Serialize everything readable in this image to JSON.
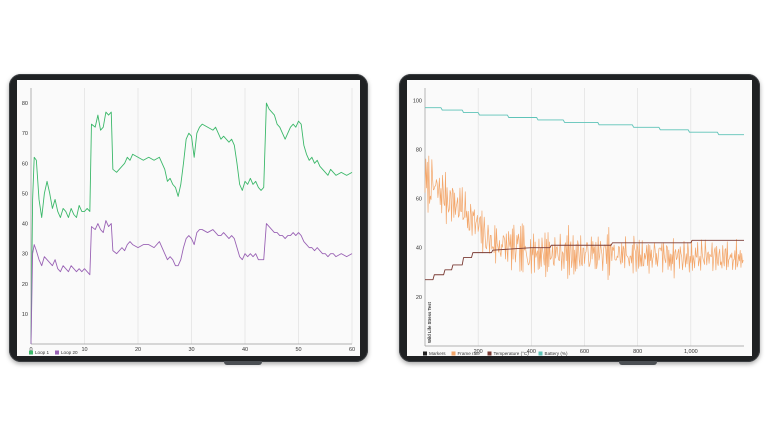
{
  "chart_data": [
    {
      "type": "line",
      "xlim": [
        0,
        60
      ],
      "ylim": [
        0,
        85
      ],
      "x_ticks": [
        "0",
        "10",
        "20",
        "30",
        "40",
        "50",
        "60"
      ],
      "y_ticks": [
        "10",
        "20",
        "30",
        "40",
        "50",
        "60",
        "70",
        "80"
      ],
      "grid": "vertical",
      "legend_position": "bottom-left",
      "series": [
        {
          "name": "Loop 1",
          "color": "#3cb86a",
          "points": [
            [
              0,
              0
            ],
            [
              0.3,
              48
            ],
            [
              0.6,
              62
            ],
            [
              1,
              61
            ],
            [
              1.5,
              48
            ],
            [
              2,
              42
            ],
            [
              2.5,
              50
            ],
            [
              3,
              54
            ],
            [
              3.5,
              50
            ],
            [
              4,
              45
            ],
            [
              4.5,
              48
            ],
            [
              5,
              44
            ],
            [
              5.5,
              42
            ],
            [
              6,
              45
            ],
            [
              6.5,
              44
            ],
            [
              7,
              42
            ],
            [
              7.5,
              45
            ],
            [
              8,
              43
            ],
            [
              8.5,
              42
            ],
            [
              9,
              46
            ],
            [
              9.5,
              44
            ],
            [
              10,
              44
            ],
            [
              10.5,
              45
            ],
            [
              11,
              44
            ],
            [
              11.3,
              73
            ],
            [
              12,
              72
            ],
            [
              12.5,
              76
            ],
            [
              13,
              71
            ],
            [
              13.5,
              72
            ],
            [
              14,
              77
            ],
            [
              14.5,
              76
            ],
            [
              15,
              77
            ],
            [
              15.3,
              58
            ],
            [
              16,
              57
            ],
            [
              16.5,
              58
            ],
            [
              17,
              59
            ],
            [
              17.5,
              60
            ],
            [
              18,
              62
            ],
            [
              18.5,
              61
            ],
            [
              19,
              63
            ],
            [
              20,
              62
            ],
            [
              21,
              61
            ],
            [
              22,
              62
            ],
            [
              23,
              61
            ],
            [
              24,
              62
            ],
            [
              25,
              58
            ],
            [
              25.5,
              54
            ],
            [
              26,
              55
            ],
            [
              26.5,
              53
            ],
            [
              27,
              52
            ],
            [
              27.5,
              49
            ],
            [
              28,
              53
            ],
            [
              28.5,
              60
            ],
            [
              29,
              68
            ],
            [
              29.5,
              70
            ],
            [
              30,
              69
            ],
            [
              30.5,
              62
            ],
            [
              31,
              70
            ],
            [
              31.5,
              72
            ],
            [
              32,
              73
            ],
            [
              33,
              72
            ],
            [
              34,
              71
            ],
            [
              34.5,
              72
            ],
            [
              35,
              70
            ],
            [
              35.5,
              68
            ],
            [
              36,
              69
            ],
            [
              36.5,
              68
            ],
            [
              37,
              67
            ],
            [
              37.5,
              68
            ],
            [
              38,
              66
            ],
            [
              38.5,
              60
            ],
            [
              39,
              53
            ],
            [
              39.5,
              51
            ],
            [
              40,
              54
            ],
            [
              40.5,
              53
            ],
            [
              41,
              55
            ],
            [
              41.5,
              53
            ],
            [
              42,
              54
            ],
            [
              42.5,
              52
            ],
            [
              43,
              51
            ],
            [
              43.5,
              52
            ],
            [
              44,
              80
            ],
            [
              44.5,
              78
            ],
            [
              45,
              77
            ],
            [
              45.5,
              76
            ],
            [
              46,
              73
            ],
            [
              46.5,
              72
            ],
            [
              47,
              70
            ],
            [
              47.5,
              68
            ],
            [
              48,
              70
            ],
            [
              48.5,
              72
            ],
            [
              49,
              73
            ],
            [
              49.5,
              72
            ],
            [
              50,
              74
            ],
            [
              50.5,
              73
            ],
            [
              51,
              66
            ],
            [
              51.5,
              63
            ],
            [
              52,
              61
            ],
            [
              52.5,
              62
            ],
            [
              53,
              60
            ],
            [
              53.5,
              61
            ],
            [
              54,
              59
            ],
            [
              54.5,
              58
            ],
            [
              55,
              57
            ],
            [
              55.5,
              56
            ],
            [
              56,
              58
            ],
            [
              56.5,
              57
            ],
            [
              57,
              56
            ],
            [
              58,
              57
            ],
            [
              59,
              56
            ],
            [
              60,
              57
            ]
          ]
        },
        {
          "name": "Loop 20",
          "color": "#9a63b5",
          "points": [
            [
              0,
              0
            ],
            [
              0.3,
              30
            ],
            [
              0.6,
              33
            ],
            [
              1,
              31
            ],
            [
              1.5,
              28
            ],
            [
              2,
              26
            ],
            [
              2.5,
              29
            ],
            [
              3,
              28
            ],
            [
              3.5,
              27
            ],
            [
              4,
              26
            ],
            [
              4.5,
              28
            ],
            [
              5,
              25
            ],
            [
              5.5,
              24
            ],
            [
              6,
              26
            ],
            [
              6.5,
              25
            ],
            [
              7,
              24
            ],
            [
              7.5,
              26
            ],
            [
              8,
              25
            ],
            [
              8.5,
              24
            ],
            [
              9,
              25
            ],
            [
              9.5,
              24
            ],
            [
              10,
              25
            ],
            [
              10.5,
              24
            ],
            [
              11,
              23
            ],
            [
              11.3,
              39
            ],
            [
              12,
              38
            ],
            [
              12.5,
              40
            ],
            [
              13,
              38
            ],
            [
              13.5,
              37
            ],
            [
              14,
              41
            ],
            [
              14.5,
              39
            ],
            [
              15,
              40
            ],
            [
              15.3,
              31
            ],
            [
              16,
              30
            ],
            [
              16.5,
              31
            ],
            [
              17,
              32
            ],
            [
              17.5,
              31
            ],
            [
              18,
              33
            ],
            [
              18.5,
              34
            ],
            [
              19,
              33
            ],
            [
              20,
              32
            ],
            [
              21,
              33
            ],
            [
              22,
              33
            ],
            [
              23,
              32
            ],
            [
              24,
              34
            ],
            [
              25,
              30
            ],
            [
              25.5,
              28
            ],
            [
              26,
              29
            ],
            [
              26.5,
              28
            ],
            [
              27,
              26
            ],
            [
              27.5,
              26
            ],
            [
              28,
              28
            ],
            [
              28.5,
              32
            ],
            [
              29,
              35
            ],
            [
              29.5,
              36
            ],
            [
              30,
              35
            ],
            [
              30.5,
              33
            ],
            [
              31,
              37
            ],
            [
              31.5,
              38
            ],
            [
              32,
              38
            ],
            [
              33,
              37
            ],
            [
              34,
              38
            ],
            [
              34.5,
              37
            ],
            [
              35,
              36
            ],
            [
              35.5,
              36
            ],
            [
              36,
              37
            ],
            [
              36.5,
              36
            ],
            [
              37,
              35
            ],
            [
              37.5,
              36
            ],
            [
              38,
              35
            ],
            [
              38.5,
              32
            ],
            [
              39,
              29
            ],
            [
              39.5,
              28
            ],
            [
              40,
              30
            ],
            [
              40.5,
              29
            ],
            [
              41,
              30
            ],
            [
              41.5,
              29
            ],
            [
              42,
              30
            ],
            [
              42.5,
              28
            ],
            [
              43,
              28
            ],
            [
              43.5,
              28
            ],
            [
              44,
              40
            ],
            [
              44.5,
              39
            ],
            [
              45,
              38
            ],
            [
              45.5,
              37
            ],
            [
              46,
              37
            ],
            [
              46.5,
              36
            ],
            [
              47,
              36
            ],
            [
              47.5,
              35
            ],
            [
              48,
              36
            ],
            [
              48.5,
              36
            ],
            [
              49,
              37
            ],
            [
              49.5,
              36
            ],
            [
              50,
              37
            ],
            [
              50.5,
              36
            ],
            [
              51,
              34
            ],
            [
              51.5,
              33
            ],
            [
              52,
              32
            ],
            [
              52.5,
              32
            ],
            [
              53,
              31
            ],
            [
              53.5,
              32
            ],
            [
              54,
              31
            ],
            [
              54.5,
              30
            ],
            [
              55,
              30
            ],
            [
              55.5,
              29
            ],
            [
              56,
              30
            ],
            [
              56.5,
              30
            ],
            [
              57,
              29
            ],
            [
              58,
              30
            ],
            [
              59,
              29
            ],
            [
              60,
              30
            ]
          ]
        }
      ]
    },
    {
      "type": "line",
      "xlim": [
        0,
        1200
      ],
      "ylim": [
        0,
        105
      ],
      "x_ticks": [
        "200",
        "400",
        "600",
        "800",
        "1,000"
      ],
      "y_ticks": [
        "20",
        "40",
        "60",
        "80",
        "100"
      ],
      "grid": "vertical",
      "legend_position": "bottom-left",
      "rotated_label": "Wild Life Stress Test",
      "legend_extra": "Markers",
      "series": [
        {
          "name": "Frame rate",
          "color": "#f3a66a",
          "seed": 7,
          "profile": [
            [
              0,
              67
            ],
            [
              150,
              55
            ],
            [
              250,
              42
            ],
            [
              400,
              38
            ],
            [
              1200,
              36
            ]
          ],
          "amplitude": [
            [
              0,
              16
            ],
            [
              250,
              14
            ],
            [
              1200,
              10
            ]
          ]
        },
        {
          "name": "Temperature (°C)",
          "color": "#7a3b34",
          "points": [
            [
              0,
              27
            ],
            [
              30,
              27
            ],
            [
              35,
              29
            ],
            [
              70,
              29
            ],
            [
              75,
              31
            ],
            [
              100,
              31
            ],
            [
              105,
              33
            ],
            [
              140,
              33
            ],
            [
              145,
              36
            ],
            [
              175,
              36
            ],
            [
              180,
              38
            ],
            [
              250,
              38
            ],
            [
              255,
              39
            ],
            [
              400,
              40
            ],
            [
              470,
              40
            ],
            [
              475,
              41
            ],
            [
              700,
              41
            ],
            [
              705,
              42
            ],
            [
              1000,
              42
            ],
            [
              1005,
              43
            ],
            [
              1200,
              43
            ]
          ]
        },
        {
          "name": "Battery (%)",
          "color": "#5ec3b8",
          "points": [
            [
              0,
              97
            ],
            [
              60,
              97
            ],
            [
              65,
              96
            ],
            [
              140,
              96
            ],
            [
              145,
              95
            ],
            [
              200,
              95
            ],
            [
              205,
              94
            ],
            [
              310,
              94
            ],
            [
              315,
              93
            ],
            [
              420,
              93
            ],
            [
              425,
              92
            ],
            [
              520,
              92
            ],
            [
              525,
              91
            ],
            [
              650,
              91
            ],
            [
              655,
              90
            ],
            [
              780,
              90
            ],
            [
              785,
              89
            ],
            [
              880,
              89
            ],
            [
              885,
              88
            ],
            [
              990,
              88
            ],
            [
              995,
              87
            ],
            [
              1100,
              87
            ],
            [
              1105,
              86
            ],
            [
              1200,
              86
            ]
          ]
        }
      ]
    }
  ]
}
